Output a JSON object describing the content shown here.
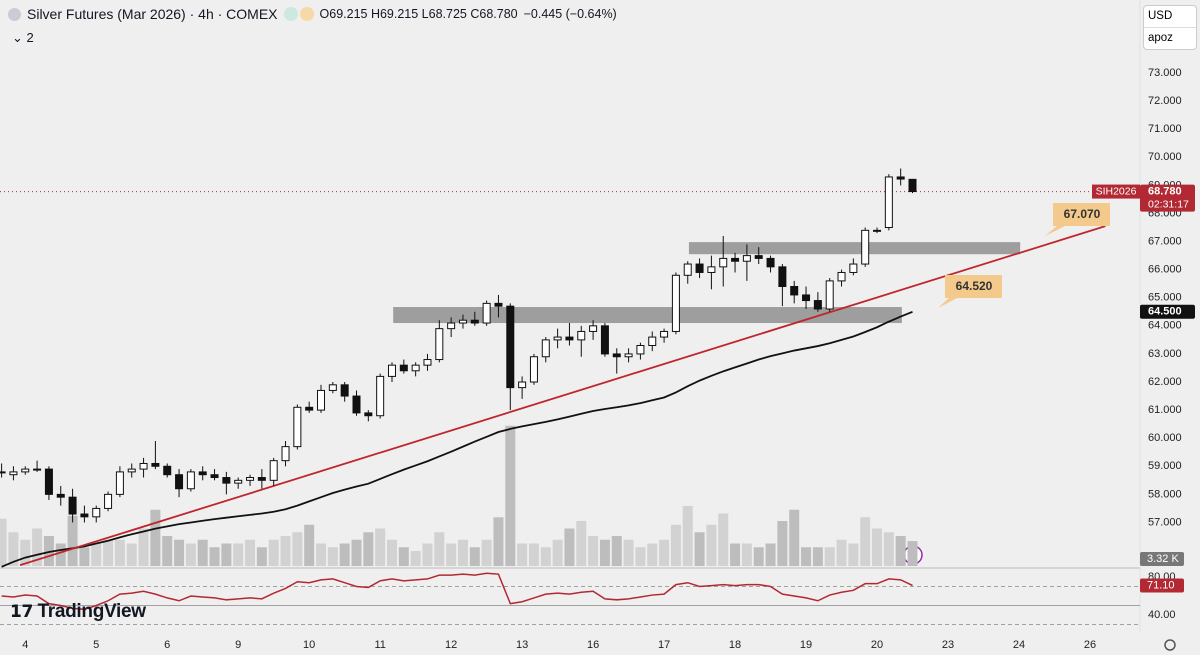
{
  "chart_data": {
    "type": "candlestick",
    "title": "Silver Futures (Mar 2026) · 4h · COMEX",
    "ohlc": "O69.215 H69.215 L68.725 C68.780",
    "change": "−0.445 (−0.64%)",
    "indicators": "2",
    "currency": "USD",
    "scale_mode": "apoz",
    "logo": "TradingView",
    "ylim": [
      55.45,
      75.6
    ],
    "yticks": [
      {
        "value": 57,
        "label": "57.000"
      },
      {
        "value": 58,
        "label": "58.000"
      },
      {
        "value": 59,
        "label": "59.000"
      },
      {
        "value": 60,
        "label": "60.000"
      },
      {
        "value": 61,
        "label": "61.000"
      },
      {
        "value": 62,
        "label": "62.000"
      },
      {
        "value": 63,
        "label": "63.000"
      },
      {
        "value": 64,
        "label": "64.000"
      },
      {
        "value": 65,
        "label": "65.000"
      },
      {
        "value": 66,
        "label": "66.000"
      },
      {
        "value": 67,
        "label": "67.000"
      },
      {
        "value": 68,
        "label": "68.000"
      },
      {
        "value": 69,
        "label": "69.000"
      },
      {
        "value": 70,
        "label": "70.000"
      },
      {
        "value": 71,
        "label": "71.000"
      },
      {
        "value": 72,
        "label": "72.000"
      },
      {
        "value": 73,
        "label": "73.000"
      }
    ],
    "xticks": [
      {
        "value": 2,
        "label": "4"
      },
      {
        "value": 8,
        "label": "5"
      },
      {
        "value": 14,
        "label": "6"
      },
      {
        "value": 20,
        "label": "9"
      },
      {
        "value": 26,
        "label": "10"
      },
      {
        "value": 32,
        "label": "11"
      },
      {
        "value": 38,
        "label": "12"
      },
      {
        "value": 44,
        "label": "13"
      },
      {
        "value": 50,
        "label": "16"
      },
      {
        "value": 56,
        "label": "17"
      },
      {
        "value": 62,
        "label": "18"
      },
      {
        "value": 68,
        "label": "19"
      },
      {
        "value": 74,
        "label": "20"
      },
      {
        "value": 80,
        "label": "23"
      },
      {
        "value": 86,
        "label": "24"
      },
      {
        "value": 92,
        "label": "26"
      }
    ],
    "candles": {
      "open": [
        58.8,
        58.7,
        58.8,
        58.9,
        58.9,
        58.0,
        57.9,
        57.3,
        57.2,
        57.5,
        58.0,
        58.8,
        58.9,
        59.1,
        59.0,
        58.7,
        58.2,
        58.8,
        58.7,
        58.6,
        58.4,
        58.5,
        58.6,
        58.5,
        59.2,
        59.7,
        61.1,
        61.0,
        61.7,
        61.9,
        61.5,
        60.9,
        60.8,
        62.2,
        62.6,
        62.4,
        62.6,
        62.8,
        63.9,
        64.1,
        64.2,
        64.1,
        64.8,
        64.7,
        61.8,
        62.0,
        62.9,
        63.5,
        63.6,
        63.5,
        63.8,
        64.0,
        63.0,
        62.9,
        63.0,
        63.3,
        63.6,
        63.8,
        65.8,
        66.2,
        65.9,
        66.1,
        66.4,
        66.3,
        66.5,
        66.4,
        66.1,
        65.4,
        65.1,
        64.9,
        64.6,
        65.6,
        65.9,
        66.2,
        67.4,
        67.5,
        69.3,
        69.215
      ],
      "high": [
        59.1,
        59.0,
        59.0,
        59.2,
        59.0,
        58.3,
        58.2,
        57.6,
        57.6,
        58.1,
        59.0,
        59.1,
        59.3,
        59.9,
        59.1,
        58.9,
        58.9,
        59.0,
        58.9,
        58.8,
        58.6,
        58.7,
        58.9,
        59.3,
        59.9,
        61.2,
        61.3,
        61.9,
        62.0,
        62.0,
        61.7,
        61.0,
        62.3,
        62.7,
        62.8,
        62.7,
        63.0,
        64.2,
        64.3,
        64.4,
        64.5,
        64.9,
        65.1,
        64.8,
        62.2,
        63.0,
        63.6,
        63.9,
        64.1,
        64.0,
        64.2,
        64.1,
        63.2,
        63.2,
        63.4,
        63.8,
        63.9,
        65.9,
        66.3,
        66.4,
        66.5,
        67.2,
        66.6,
        66.9,
        66.8,
        66.5,
        66.2,
        65.6,
        65.4,
        65.2,
        65.7,
        66.0,
        66.4,
        67.5,
        67.5,
        69.4,
        69.6,
        69.215
      ],
      "low": [
        58.6,
        58.5,
        58.7,
        58.8,
        57.8,
        57.6,
        57.0,
        57.0,
        57.0,
        57.4,
        57.9,
        58.6,
        58.6,
        58.9,
        58.6,
        57.9,
        58.1,
        58.5,
        58.5,
        58.0,
        58.2,
        58.3,
        58.2,
        58.3,
        59.0,
        59.6,
        60.9,
        60.9,
        61.6,
        61.3,
        60.8,
        60.6,
        60.7,
        62.0,
        62.3,
        62.2,
        62.4,
        62.7,
        63.6,
        63.9,
        64.0,
        64.0,
        64.3,
        61.0,
        61.4,
        61.9,
        62.7,
        63.2,
        63.3,
        62.9,
        63.5,
        62.9,
        62.3,
        62.7,
        62.8,
        63.1,
        63.4,
        63.7,
        65.5,
        65.7,
        65.3,
        65.4,
        65.9,
        65.6,
        66.2,
        65.9,
        64.7,
        64.8,
        64.6,
        64.5,
        64.5,
        65.4,
        65.8,
        66.1,
        67.3,
        67.4,
        69.0,
        68.725
      ],
      "close": [
        58.8,
        58.8,
        58.9,
        58.9,
        58.0,
        57.9,
        57.3,
        57.2,
        57.5,
        58.0,
        58.8,
        58.9,
        59.1,
        59.0,
        58.7,
        58.2,
        58.8,
        58.7,
        58.6,
        58.4,
        58.5,
        58.6,
        58.5,
        59.2,
        59.7,
        61.1,
        61.0,
        61.7,
        61.9,
        61.5,
        60.9,
        60.8,
        62.2,
        62.6,
        62.4,
        62.6,
        62.8,
        63.9,
        64.1,
        64.2,
        64.1,
        64.8,
        64.7,
        61.8,
        62.0,
        62.9,
        63.5,
        63.6,
        63.5,
        63.8,
        64.0,
        63.0,
        62.9,
        63.0,
        63.3,
        63.6,
        63.8,
        65.8,
        66.2,
        65.9,
        66.1,
        66.4,
        66.3,
        66.5,
        66.4,
        66.1,
        65.4,
        65.1,
        64.9,
        64.6,
        65.6,
        65.9,
        66.2,
        67.4,
        67.4,
        69.3,
        69.225,
        68.78
      ]
    },
    "volume": {
      "values": [
        6.3,
        4.5,
        3.5,
        5,
        4,
        3,
        6.7,
        2.5,
        3,
        3.5,
        3.5,
        3,
        5,
        7.5,
        4,
        3.5,
        3,
        3.5,
        2.5,
        3,
        3,
        3.5,
        2.5,
        3.5,
        4,
        4.5,
        5.5,
        3,
        2.5,
        3,
        3.5,
        4.5,
        5,
        3.5,
        2.5,
        2,
        3,
        4.5,
        3,
        3.5,
        2.5,
        3.5,
        6.5,
        18.7,
        3,
        3,
        2.5,
        3.5,
        5,
        6,
        4,
        3.5,
        4,
        3.5,
        2.5,
        3,
        3.5,
        5.5,
        8,
        4.5,
        5.5,
        7,
        3,
        3,
        2.5,
        3,
        6,
        7.5,
        2.5,
        2.5,
        2.5,
        3.5,
        3,
        6.5,
        5,
        4.5,
        4,
        3.32
      ],
      "last_label": "3.32 K"
    },
    "ma": {
      "color": "#111111",
      "last_label": "64.500",
      "values": [
        55.42,
        55.6,
        55.75,
        55.85,
        55.95,
        56.02,
        56.08,
        56.15,
        56.25,
        56.35,
        56.47,
        56.58,
        56.68,
        56.78,
        56.86,
        56.94,
        57.0,
        57.06,
        57.12,
        57.17,
        57.22,
        57.27,
        57.32,
        57.38,
        57.47,
        57.6,
        57.75,
        57.9,
        58.05,
        58.17,
        58.28,
        58.38,
        58.55,
        58.72,
        58.88,
        59.03,
        59.18,
        59.35,
        59.52,
        59.7,
        59.88,
        60.05,
        60.22,
        60.33,
        60.42,
        60.5,
        60.58,
        60.67,
        60.77,
        60.87,
        60.97,
        61.04,
        61.1,
        61.17,
        61.25,
        61.35,
        61.45,
        61.63,
        61.85,
        62.05,
        62.22,
        62.38,
        62.52,
        62.66,
        62.8,
        62.92,
        63.02,
        63.12,
        63.2,
        63.28,
        63.38,
        63.5,
        63.62,
        63.78,
        63.95,
        64.15,
        64.33,
        64.5
      ]
    },
    "rsi": {
      "color": "#b22833",
      "ylim": [
        22.1,
        89.5
      ],
      "yticks": [
        {
          "value": 80,
          "label": "80.00"
        },
        {
          "value": 40,
          "label": "40.00"
        }
      ],
      "bands": [
        70,
        50,
        30
      ],
      "last_label": "71.10",
      "values": [
        60,
        59,
        61,
        60,
        52,
        50,
        47,
        46,
        50,
        55,
        62,
        63,
        65,
        62,
        58,
        55,
        60,
        59,
        58,
        56,
        57,
        58,
        57,
        63,
        68,
        75,
        74,
        77,
        78,
        74,
        70,
        69,
        76,
        78,
        76,
        77,
        78,
        82,
        82,
        83,
        82,
        84,
        83,
        52,
        54,
        58,
        62,
        63,
        62,
        64,
        65,
        57,
        56,
        57,
        59,
        61,
        62,
        72,
        74,
        70,
        71,
        72,
        71,
        72,
        72,
        70,
        62,
        60,
        58,
        55,
        61,
        64,
        66,
        73,
        73,
        78,
        77,
        71.1
      ]
    },
    "trendline": {
      "color": "#c0262d",
      "start": [
        1.56,
        55.48
      ],
      "end": [
        93.3,
        67.55
      ]
    },
    "zones": [
      {
        "from": 33.1,
        "to": 76.1,
        "low": 64.1,
        "high": 64.67
      },
      {
        "from": 58.1,
        "to": 86.1,
        "low": 66.55,
        "high": 66.98
      }
    ],
    "annotations": [
      "67.070",
      "64.520"
    ],
    "price_tag": {
      "symbol": "SIH2026",
      "price_label": "68.780",
      "countdown": "02:31:17"
    }
  }
}
